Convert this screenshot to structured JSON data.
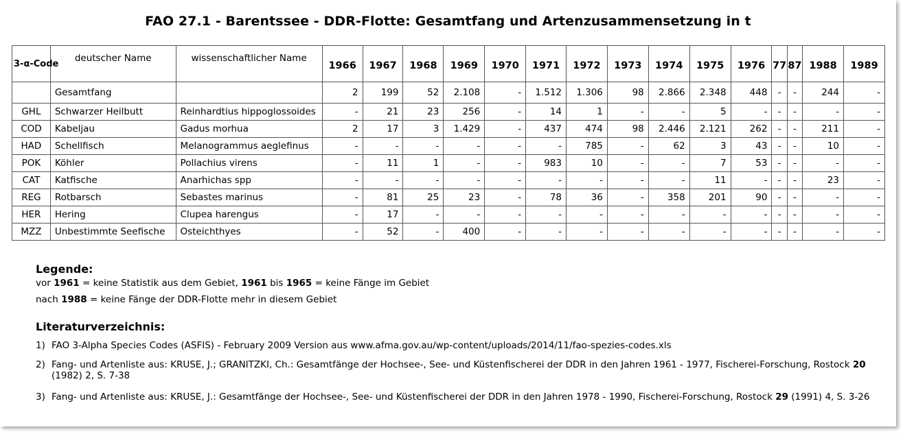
{
  "title": "FAO 27.1 - Barentssee - DDR-Flotte: Gesamtfang und Artenzusammensetzung in t",
  "table": {
    "headers": {
      "code": "3-α-Code",
      "german": "deutscher Name",
      "scientific": "wissenschaftlicher Name",
      "years": [
        "1966",
        "1967",
        "1968",
        "1969",
        "1970",
        "1971",
        "1972",
        "1973",
        "1974",
        "1975",
        "1976",
        "77",
        "87",
        "1988",
        "1989"
      ]
    },
    "rows": [
      {
        "code": "",
        "german": "Gesamtfang",
        "scientific": "",
        "values": [
          "2",
          "199",
          "52",
          "2.108",
          "-",
          "1.512",
          "1.306",
          "98",
          "2.866",
          "2.348",
          "448",
          "-",
          "-",
          "244",
          "-"
        ]
      },
      {
        "code": "GHL",
        "german": "Schwarzer Heilbutt",
        "scientific": "Reinhardtius hippoglossoides",
        "values": [
          "-",
          "21",
          "23",
          "256",
          "-",
          "14",
          "1",
          "-",
          "-",
          "5",
          "-",
          "-",
          "-",
          "-",
          "-"
        ]
      },
      {
        "code": "COD",
        "german": "Kabeljau",
        "scientific": "Gadus morhua",
        "values": [
          "2",
          "17",
          "3",
          "1.429",
          "-",
          "437",
          "474",
          "98",
          "2.446",
          "2.121",
          "262",
          "-",
          "-",
          "211",
          "-"
        ]
      },
      {
        "code": "HAD",
        "german": "Schellfisch",
        "scientific": "Melanogrammus aeglefinus",
        "values": [
          "-",
          "-",
          "-",
          "-",
          "-",
          "-",
          "785",
          "-",
          "62",
          "3",
          "43",
          "-",
          "-",
          "10",
          "-"
        ]
      },
      {
        "code": "POK",
        "german": "Köhler",
        "scientific": "Pollachius virens",
        "values": [
          "-",
          "11",
          "1",
          "-",
          "-",
          "983",
          "10",
          "-",
          "-",
          "7",
          "53",
          "-",
          "-",
          "-",
          "-"
        ]
      },
      {
        "code": "CAT",
        "german": "Katfische",
        "scientific": "Anarhichas spp",
        "values": [
          "-",
          "-",
          "-",
          "-",
          "-",
          "-",
          "-",
          "-",
          "-",
          "11",
          "-",
          "-",
          "-",
          "23",
          "-"
        ]
      },
      {
        "code": "REG",
        "german": "Rotbarsch",
        "scientific": "Sebastes marinus",
        "values": [
          "-",
          "81",
          "25",
          "23",
          "-",
          "78",
          "36",
          "-",
          "358",
          "201",
          "90",
          "-",
          "-",
          "-",
          "-"
        ]
      },
      {
        "code": "HER",
        "german": "Hering",
        "scientific": "Clupea harengus",
        "values": [
          "-",
          "17",
          "-",
          "-",
          "-",
          "-",
          "-",
          "-",
          "-",
          "-",
          "-",
          "-",
          "-",
          "-",
          "-"
        ]
      },
      {
        "code": "MZZ",
        "german": "Unbestimmte Seefische",
        "scientific": "Osteichthyes",
        "values": [
          "-",
          "52",
          "-",
          "400",
          "-",
          "-",
          "-",
          "-",
          "-",
          "-",
          "-",
          "-",
          "-",
          "-",
          "-"
        ]
      }
    ]
  },
  "legend": {
    "heading": "Legende:",
    "line1": {
      "pre": "vor ",
      "y1": "1961",
      "mid1": " = keine Statistik aus dem Gebiet, ",
      "y2": "1961",
      "mid2": " bis ",
      "y3": "1965",
      "post": " = keine Fänge im Gebiet"
    },
    "line2": {
      "pre": "nach ",
      "y1": "1988",
      "post": " = keine Fänge der DDR-Flotte mehr in diesem Gebiet"
    }
  },
  "literature": {
    "heading": "Literaturverzeichnis:",
    "items": [
      {
        "num": "1)",
        "pre": "FAO 3-Alpha Species Codes (ASFIS) - February 2009 Version aus  www.afma.gov.au/wp-content/uploads/2014/11/fao-spezies-codes.xls",
        "bold": "",
        "post": ""
      },
      {
        "num": "2)",
        "pre": "Fang- und Artenliste aus: KRUSE, J.; GRANITZKI, Ch.: Gesamtfänge der Hochsee-, See- und Küstenfischerei der DDR in den Jahren 1961 - 1977, Fischerei-Forschung, Rostock ",
        "bold": "20",
        "post": " (1982) 2, S. 7-38"
      },
      {
        "num": "3)",
        "pre": "Fang- und Artenliste aus: KRUSE, J.: Gesamtfänge der Hochsee-, See- und Küstenfischerei der DDR in den Jahren 1978 - 1990, Fischerei-Forschung, Rostock ",
        "bold": "29",
        "post": " (1991) 4, S. 3-26"
      }
    ]
  }
}
